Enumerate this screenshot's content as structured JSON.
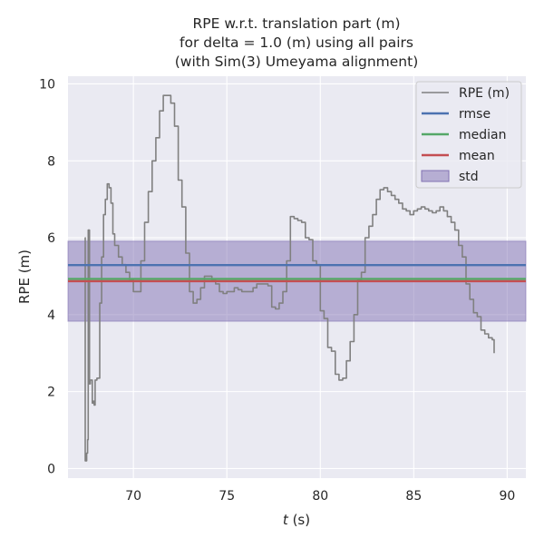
{
  "chart_data": {
    "type": "line",
    "title_lines": [
      "RPE w.r.t. translation part (m)",
      "for delta = 1.0 (m) using all pairs",
      "(with Sim(3) Umeyama alignment)"
    ],
    "xlabel": "t (s)",
    "xlabel_var": "t",
    "xlabel_unit": " (s)",
    "ylabel": "RPE (m)",
    "xlim": [
      66.5,
      91.0
    ],
    "ylim": [
      -0.25,
      10.2
    ],
    "xticks": [
      70,
      75,
      80,
      85,
      90
    ],
    "yticks": [
      0,
      2,
      4,
      6,
      8,
      10
    ],
    "grid": true,
    "legend_position": "top-right",
    "series": [
      {
        "name": "RPE (m)",
        "color": "#808080",
        "style": "steps",
        "points": [
          [
            67.4,
            6.0
          ],
          [
            67.42,
            0.2
          ],
          [
            67.5,
            0.4
          ],
          [
            67.55,
            0.75
          ],
          [
            67.58,
            6.2
          ],
          [
            67.65,
            2.2
          ],
          [
            67.7,
            2.3
          ],
          [
            67.8,
            1.7
          ],
          [
            67.85,
            1.75
          ],
          [
            67.9,
            1.65
          ],
          [
            67.95,
            2.3
          ],
          [
            68.05,
            2.35
          ],
          [
            68.2,
            4.3
          ],
          [
            68.3,
            5.5
          ],
          [
            68.4,
            6.6
          ],
          [
            68.5,
            7.0
          ],
          [
            68.6,
            7.4
          ],
          [
            68.7,
            7.3
          ],
          [
            68.8,
            6.9
          ],
          [
            68.9,
            6.1
          ],
          [
            69.0,
            5.8
          ],
          [
            69.2,
            5.5
          ],
          [
            69.4,
            5.3
          ],
          [
            69.6,
            5.1
          ],
          [
            69.8,
            4.9
          ],
          [
            70.0,
            4.6
          ],
          [
            70.3,
            4.6
          ],
          [
            70.4,
            5.4
          ],
          [
            70.6,
            6.4
          ],
          [
            70.8,
            7.2
          ],
          [
            71.0,
            8.0
          ],
          [
            71.2,
            8.6
          ],
          [
            71.4,
            9.3
          ],
          [
            71.6,
            9.7
          ],
          [
            71.8,
            9.7
          ],
          [
            72.0,
            9.5
          ],
          [
            72.2,
            8.9
          ],
          [
            72.4,
            7.5
          ],
          [
            72.6,
            6.8
          ],
          [
            72.8,
            5.6
          ],
          [
            73.0,
            4.6
          ],
          [
            73.2,
            4.3
          ],
          [
            73.4,
            4.4
          ],
          [
            73.6,
            4.7
          ],
          [
            73.8,
            5.0
          ],
          [
            74.0,
            5.0
          ],
          [
            74.2,
            4.9
          ],
          [
            74.4,
            4.8
          ],
          [
            74.6,
            4.6
          ],
          [
            74.8,
            4.55
          ],
          [
            75.0,
            4.6
          ],
          [
            75.2,
            4.6
          ],
          [
            75.4,
            4.7
          ],
          [
            75.6,
            4.65
          ],
          [
            75.8,
            4.6
          ],
          [
            76.0,
            4.6
          ],
          [
            76.2,
            4.6
          ],
          [
            76.4,
            4.7
          ],
          [
            76.6,
            4.8
          ],
          [
            76.8,
            4.8
          ],
          [
            77.0,
            4.8
          ],
          [
            77.2,
            4.75
          ],
          [
            77.4,
            4.2
          ],
          [
            77.6,
            4.15
          ],
          [
            77.8,
            4.3
          ],
          [
            78.0,
            4.6
          ],
          [
            78.2,
            5.4
          ],
          [
            78.4,
            6.55
          ],
          [
            78.6,
            6.5
          ],
          [
            78.8,
            6.45
          ],
          [
            79.0,
            6.4
          ],
          [
            79.2,
            6.0
          ],
          [
            79.4,
            5.95
          ],
          [
            79.6,
            5.4
          ],
          [
            79.8,
            5.3
          ],
          [
            80.0,
            4.1
          ],
          [
            80.2,
            3.9
          ],
          [
            80.4,
            3.15
          ],
          [
            80.6,
            3.05
          ],
          [
            80.8,
            2.45
          ],
          [
            81.0,
            2.3
          ],
          [
            81.2,
            2.35
          ],
          [
            81.4,
            2.8
          ],
          [
            81.6,
            3.3
          ],
          [
            81.8,
            4.0
          ],
          [
            82.0,
            4.9
          ],
          [
            82.2,
            5.1
          ],
          [
            82.4,
            6.0
          ],
          [
            82.6,
            6.3
          ],
          [
            82.8,
            6.6
          ],
          [
            83.0,
            7.0
          ],
          [
            83.2,
            7.25
          ],
          [
            83.4,
            7.3
          ],
          [
            83.6,
            7.2
          ],
          [
            83.8,
            7.1
          ],
          [
            84.0,
            7.0
          ],
          [
            84.2,
            6.9
          ],
          [
            84.4,
            6.75
          ],
          [
            84.6,
            6.7
          ],
          [
            84.8,
            6.6
          ],
          [
            85.0,
            6.7
          ],
          [
            85.2,
            6.75
          ],
          [
            85.4,
            6.8
          ],
          [
            85.6,
            6.75
          ],
          [
            85.8,
            6.7
          ],
          [
            86.0,
            6.65
          ],
          [
            86.2,
            6.7
          ],
          [
            86.4,
            6.8
          ],
          [
            86.6,
            6.7
          ],
          [
            86.8,
            6.55
          ],
          [
            87.0,
            6.4
          ],
          [
            87.2,
            6.2
          ],
          [
            87.4,
            5.8
          ],
          [
            87.6,
            5.5
          ],
          [
            87.8,
            4.8
          ],
          [
            88.0,
            4.4
          ],
          [
            88.2,
            4.05
          ],
          [
            88.4,
            3.95
          ],
          [
            88.6,
            3.6
          ],
          [
            88.8,
            3.5
          ],
          [
            89.0,
            3.4
          ],
          [
            89.2,
            3.35
          ],
          [
            89.3,
            3.0
          ]
        ]
      },
      {
        "name": "rmse",
        "color": "#4c72b0",
        "value": 5.29
      },
      {
        "name": "median",
        "color": "#55a868",
        "value": 4.93
      },
      {
        "name": "mean",
        "color": "#c44e52",
        "value": 4.87
      }
    ],
    "std_band": {
      "name": "std",
      "color": "#8172b3",
      "low": 3.83,
      "high": 5.91
    },
    "colors": {
      "plot_background": "#eaeaf2",
      "grid": "#ffffff",
      "text": "#262626"
    }
  }
}
